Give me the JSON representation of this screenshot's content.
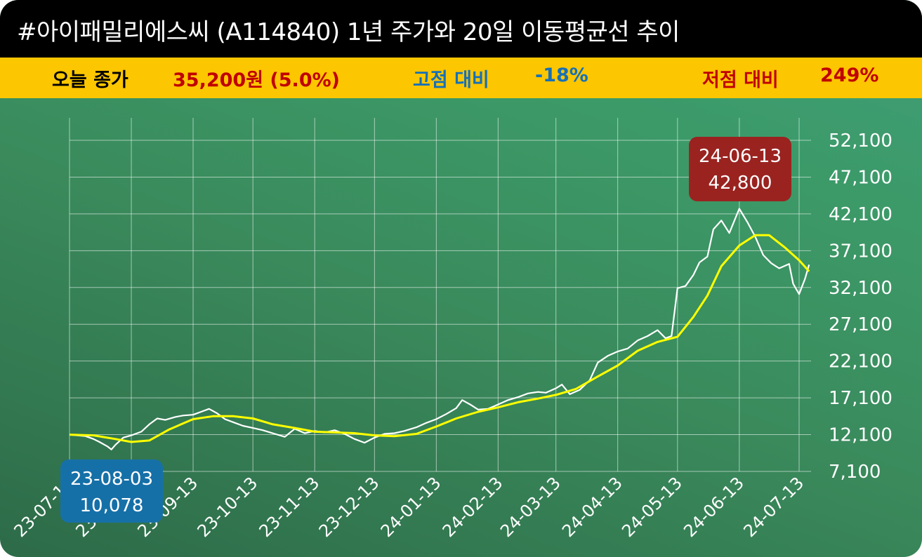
{
  "header": {
    "title": "#아이패밀리에스씨 (A114840) 1년 주가와 20일 이동평균선 추이"
  },
  "stats": {
    "close_label": "오늘 종가",
    "close_value": "35,200원 (5.0%)",
    "high_label": "고점 대비",
    "high_value": "-18%",
    "low_label": "저점 대비",
    "low_value": "249%"
  },
  "colors": {
    "title_bg": "#000000",
    "stats_bg": "#fcc600",
    "close_value": "#c00000",
    "high_label": "#1670b8",
    "low_label": "#c00000",
    "price_line": "#ffffff",
    "ma_line": "#ffff00",
    "high_callout": "#9a2320",
    "low_callout": "#1670a8"
  },
  "chart_data": {
    "type": "line",
    "ylim": [
      7100,
      52100
    ],
    "y_ticks": [
      "52,100",
      "47,100",
      "42,100",
      "37,100",
      "32,100",
      "27,100",
      "22,100",
      "17,100",
      "12,100",
      "7,100"
    ],
    "x_ticks": [
      "23-07-13",
      "23-08-13",
      "23-09-13",
      "23-10-13",
      "23-11-13",
      "23-12-13",
      "24-01-13",
      "24-02-13",
      "24-03-13",
      "24-04-13",
      "24-05-13",
      "24-06-13",
      "24-07-13"
    ],
    "grid": true,
    "series": [
      {
        "key": "price",
        "points": [
          [
            "23-07-13",
            12100
          ],
          [
            "23-07-17",
            12000
          ],
          [
            "23-07-21",
            11900
          ],
          [
            "23-07-25",
            11500
          ],
          [
            "23-07-28",
            11100
          ],
          [
            "23-08-01",
            10500
          ],
          [
            "23-08-03",
            10078
          ],
          [
            "23-08-05",
            10700
          ],
          [
            "23-08-09",
            11700
          ],
          [
            "23-08-13",
            12000
          ],
          [
            "23-08-18",
            12500
          ],
          [
            "23-08-22",
            13500
          ],
          [
            "23-08-26",
            14300
          ],
          [
            "23-08-30",
            14100
          ],
          [
            "23-09-04",
            14500
          ],
          [
            "23-09-08",
            14700
          ],
          [
            "23-09-13",
            14800
          ],
          [
            "23-09-17",
            15200
          ],
          [
            "23-09-21",
            15600
          ],
          [
            "23-09-25",
            15000
          ],
          [
            "23-09-29",
            14200
          ],
          [
            "23-10-04",
            13700
          ],
          [
            "23-10-08",
            13300
          ],
          [
            "23-10-13",
            13000
          ],
          [
            "23-10-18",
            12700
          ],
          [
            "23-10-24",
            12200
          ],
          [
            "23-10-29",
            11800
          ],
          [
            "23-11-03",
            12900
          ],
          [
            "23-11-08",
            12300
          ],
          [
            "23-11-13",
            12600
          ],
          [
            "23-11-18",
            12400
          ],
          [
            "23-11-23",
            12700
          ],
          [
            "23-11-28",
            12200
          ],
          [
            "23-12-03",
            11500
          ],
          [
            "23-12-08",
            11000
          ],
          [
            "23-12-13",
            11700
          ],
          [
            "23-12-18",
            12200
          ],
          [
            "23-12-23",
            12300
          ],
          [
            "23-12-28",
            12600
          ],
          [
            "24-01-03",
            13100
          ],
          [
            "24-01-08",
            13700
          ],
          [
            "24-01-13",
            14200
          ],
          [
            "24-01-18",
            14900
          ],
          [
            "24-01-23",
            15700
          ],
          [
            "24-01-26",
            16800
          ],
          [
            "24-01-30",
            16200
          ],
          [
            "24-02-03",
            15500
          ],
          [
            "24-02-08",
            15600
          ],
          [
            "24-02-13",
            16200
          ],
          [
            "24-02-18",
            16800
          ],
          [
            "24-02-23",
            17200
          ],
          [
            "24-02-28",
            17700
          ],
          [
            "24-03-04",
            17900
          ],
          [
            "24-03-08",
            17800
          ],
          [
            "24-03-13",
            18400
          ],
          [
            "24-03-16",
            18900
          ],
          [
            "24-03-20",
            17600
          ],
          [
            "24-03-25",
            18200
          ],
          [
            "24-03-30",
            19500
          ],
          [
            "24-04-03",
            21900
          ],
          [
            "24-04-08",
            22800
          ],
          [
            "24-04-13",
            23400
          ],
          [
            "24-04-18",
            23800
          ],
          [
            "24-04-23",
            24900
          ],
          [
            "24-04-28",
            25500
          ],
          [
            "24-05-03",
            26300
          ],
          [
            "24-05-07",
            25200
          ],
          [
            "24-05-10",
            25500
          ],
          [
            "24-05-13",
            32000
          ],
          [
            "24-05-17",
            32300
          ],
          [
            "24-05-21",
            33800
          ],
          [
            "24-05-24",
            35500
          ],
          [
            "24-05-28",
            36300
          ],
          [
            "24-05-31",
            40000
          ],
          [
            "24-06-04",
            41200
          ],
          [
            "24-06-08",
            39500
          ],
          [
            "24-06-13",
            42800
          ],
          [
            "24-06-17",
            41000
          ],
          [
            "24-06-21",
            39000
          ],
          [
            "24-06-25",
            36500
          ],
          [
            "24-06-29",
            35400
          ],
          [
            "24-07-03",
            34700
          ],
          [
            "24-07-08",
            35300
          ],
          [
            "24-07-10",
            32600
          ],
          [
            "24-07-13",
            31200
          ],
          [
            "24-07-16",
            33300
          ],
          [
            "24-07-18",
            35200
          ]
        ]
      },
      {
        "key": "ma20",
        "points": [
          [
            "23-07-13",
            12100
          ],
          [
            "23-07-25",
            12000
          ],
          [
            "23-08-05",
            11500
          ],
          [
            "23-08-13",
            11100
          ],
          [
            "23-08-22",
            11300
          ],
          [
            "23-09-01",
            12800
          ],
          [
            "23-09-13",
            14200
          ],
          [
            "23-09-23",
            14600
          ],
          [
            "23-10-03",
            14600
          ],
          [
            "23-10-13",
            14300
          ],
          [
            "23-10-23",
            13500
          ],
          [
            "23-11-03",
            13000
          ],
          [
            "23-11-13",
            12500
          ],
          [
            "23-11-23",
            12400
          ],
          [
            "23-12-03",
            12300
          ],
          [
            "23-12-13",
            12000
          ],
          [
            "23-12-23",
            11900
          ],
          [
            "24-01-03",
            12200
          ],
          [
            "24-01-13",
            13200
          ],
          [
            "24-01-23",
            14300
          ],
          [
            "24-02-03",
            15200
          ],
          [
            "24-02-13",
            15800
          ],
          [
            "24-02-23",
            16500
          ],
          [
            "24-03-04",
            17000
          ],
          [
            "24-03-13",
            17500
          ],
          [
            "24-03-23",
            18300
          ],
          [
            "24-04-03",
            20000
          ],
          [
            "24-04-13",
            21500
          ],
          [
            "24-04-23",
            23500
          ],
          [
            "24-05-03",
            24700
          ],
          [
            "24-05-13",
            25400
          ],
          [
            "24-05-21",
            28100
          ],
          [
            "24-05-28",
            31000
          ],
          [
            "24-06-04",
            35000
          ],
          [
            "24-06-13",
            37800
          ],
          [
            "24-06-21",
            39200
          ],
          [
            "24-06-28",
            39200
          ],
          [
            "24-07-06",
            37500
          ],
          [
            "24-07-13",
            35800
          ],
          [
            "24-07-18",
            34300
          ]
        ]
      }
    ],
    "annotations": [
      {
        "key": "high",
        "date": "24-06-13",
        "value": "42,800"
      },
      {
        "key": "low",
        "date": "23-08-03",
        "value": "10,078"
      }
    ]
  }
}
